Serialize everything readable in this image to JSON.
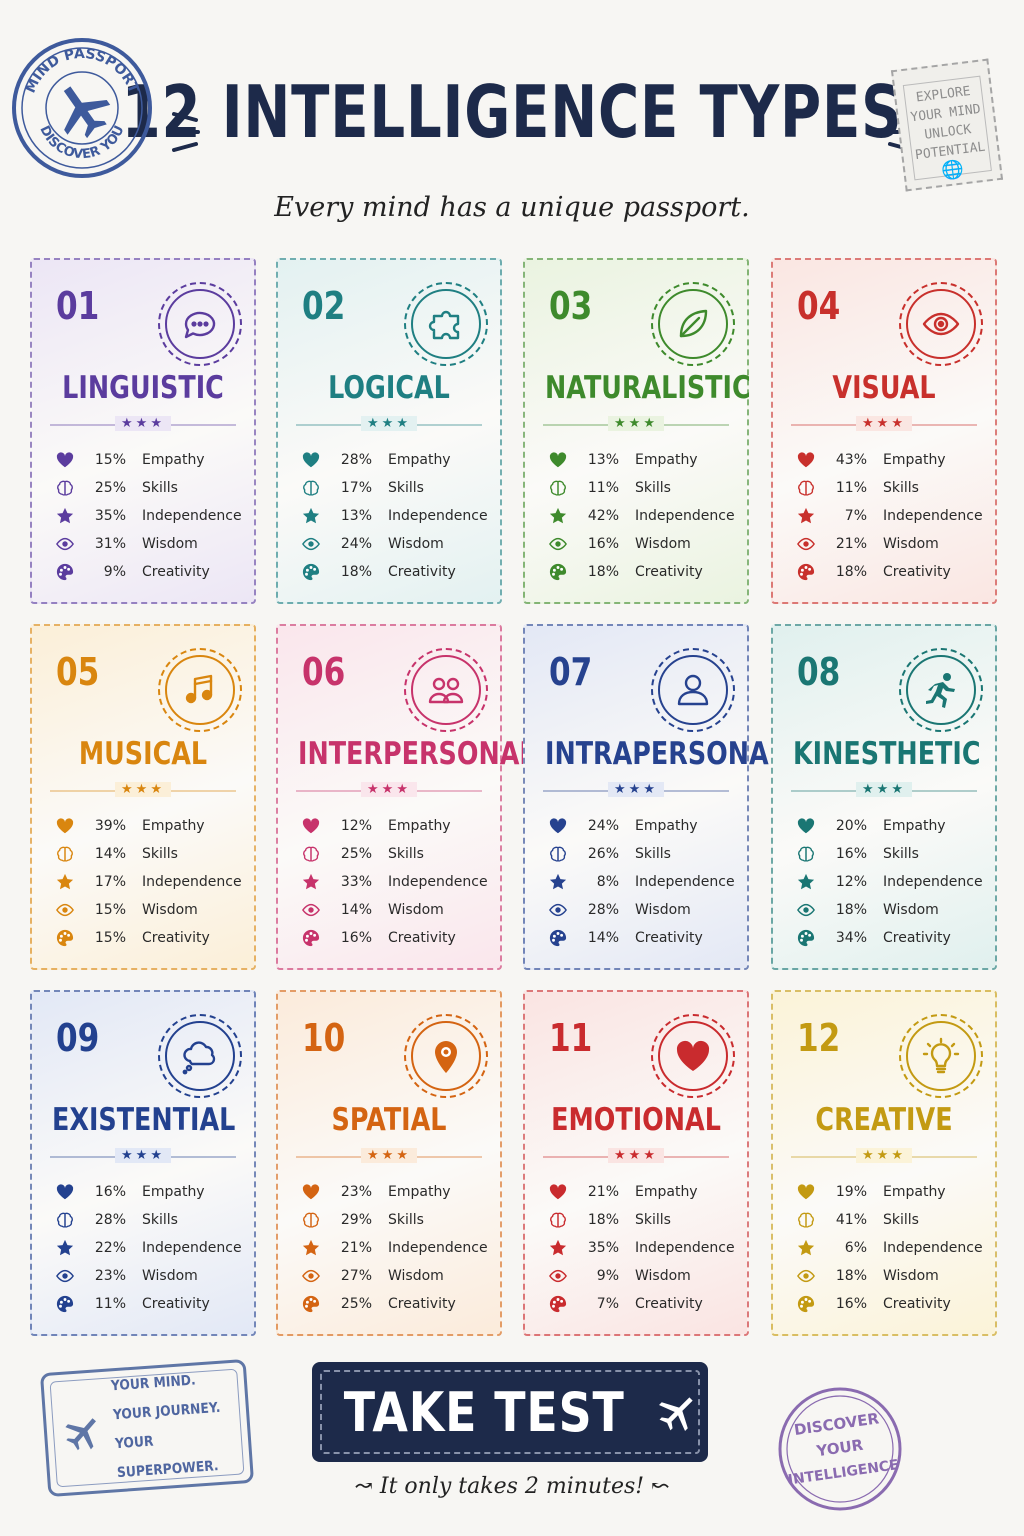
{
  "header": {
    "title": "12 INTELLIGENCE TYPES",
    "subtitle": "Every mind has a unique passport."
  },
  "stamps": {
    "top_left": {
      "line1": "MIND PASSPORT",
      "line2": "DISCOVER YOU"
    },
    "top_right": [
      "EXPLORE",
      "YOUR MIND",
      "UNLOCK",
      "POTENTIAL"
    ],
    "bottom_left": [
      "YOUR MIND.",
      "YOUR JOURNEY.",
      "YOUR SUPERPOWER."
    ],
    "bottom_right": [
      "DISCOVER",
      "YOUR",
      "INTELLIGENCE"
    ]
  },
  "stat_labels": [
    "Empathy",
    "Skills",
    "Independence",
    "Wisdom",
    "Creativity"
  ],
  "cards": [
    {
      "num": "01",
      "name": "LINGUISTIC",
      "icon": "speech-bubble-icon",
      "color": "#5b3c9e",
      "bg": "#ece6f5",
      "stats": [
        "15%",
        "25%",
        "35%",
        "31%",
        "9%"
      ]
    },
    {
      "num": "02",
      "name": "LOGICAL",
      "icon": "puzzle-icon",
      "color": "#1f7f82",
      "bg": "#e3f1f1",
      "stats": [
        "28%",
        "17%",
        "13%",
        "24%",
        "18%"
      ]
    },
    {
      "num": "03",
      "name": "NATURALISTIC",
      "icon": "leaf-icon",
      "color": "#3e8a2c",
      "bg": "#eaf3e0",
      "stats": [
        "13%",
        "11%",
        "42%",
        "16%",
        "18%"
      ]
    },
    {
      "num": "04",
      "name": "VISUAL",
      "icon": "eye-icon",
      "color": "#c8302c",
      "bg": "#fae6e2",
      "stats": [
        "43%",
        "11%",
        "7%",
        "21%",
        "18%"
      ]
    },
    {
      "num": "05",
      "name": "MUSICAL",
      "icon": "music-note-icon",
      "color": "#d9860f",
      "bg": "#fbefd8",
      "stats": [
        "39%",
        "14%",
        "17%",
        "15%",
        "15%"
      ]
    },
    {
      "num": "06",
      "name": "INTERPERSONAL",
      "icon": "people-icon",
      "color": "#c7336b",
      "bg": "#fae6ec",
      "stats": [
        "12%",
        "25%",
        "33%",
        "14%",
        "16%"
      ]
    },
    {
      "num": "07",
      "name": "INTRAPERSONAL",
      "icon": "person-icon",
      "color": "#26428f",
      "bg": "#e3e8f5",
      "stats": [
        "24%",
        "26%",
        "8%",
        "28%",
        "14%"
      ]
    },
    {
      "num": "08",
      "name": "KINESTHETIC",
      "icon": "runner-icon",
      "color": "#1a7673",
      "bg": "#e0f0ee",
      "stats": [
        "20%",
        "16%",
        "12%",
        "18%",
        "34%"
      ]
    },
    {
      "num": "09",
      "name": "EXISTENTIAL",
      "icon": "cloud-thought-icon",
      "color": "#23418f",
      "bg": "#e2e8f6",
      "stats": [
        "16%",
        "28%",
        "22%",
        "23%",
        "11%"
      ]
    },
    {
      "num": "10",
      "name": "SPATIAL",
      "icon": "map-pin-icon",
      "color": "#d46412",
      "bg": "#fbebdb",
      "stats": [
        "23%",
        "29%",
        "21%",
        "27%",
        "25%"
      ]
    },
    {
      "num": "11",
      "name": "EMOTIONAL",
      "icon": "heart-icon",
      "color": "#c92b2e",
      "bg": "#fae4e2",
      "stats": [
        "21%",
        "18%",
        "35%",
        "9%",
        "7%"
      ]
    },
    {
      "num": "12",
      "name": "CREATIVE",
      "icon": "lightbulb-icon",
      "color": "#c39a12",
      "bg": "#fbf3d8",
      "stats": [
        "19%",
        "41%",
        "6%",
        "18%",
        "16%"
      ]
    }
  ],
  "cta": {
    "label": "TAKE TEST",
    "note": "It only takes 2 minutes!"
  }
}
